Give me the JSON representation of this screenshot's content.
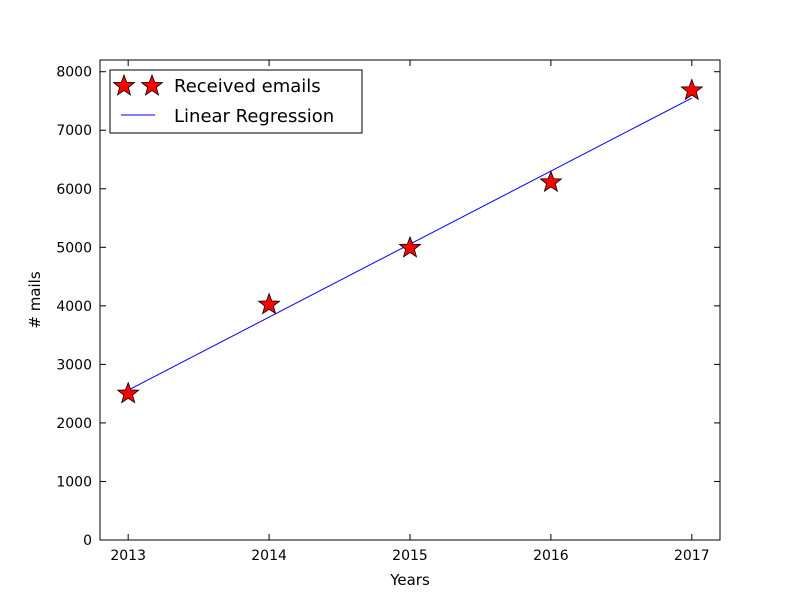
{
  "chart_data": {
    "type": "scatter",
    "title": "",
    "xlabel": "Years",
    "ylabel": "# mails",
    "xlim": [
      2012.8,
      2017.2
    ],
    "ylim": [
      0,
      8200
    ],
    "xticks": [
      2013,
      2014,
      2015,
      2016,
      2017
    ],
    "yticks": [
      0,
      1000,
      2000,
      3000,
      4000,
      5000,
      6000,
      7000,
      8000
    ],
    "xtick_labels": [
      "2013",
      "2014",
      "2015",
      "2016",
      "2017"
    ],
    "ytick_labels": [
      "0",
      "1000",
      "2000",
      "3000",
      "4000",
      "5000",
      "6000",
      "7000",
      "8000"
    ],
    "grid": false,
    "legend_position": "upper-left",
    "series": [
      {
        "name": "Received emails",
        "kind": "scatter",
        "marker": "star",
        "color": "#ff0000",
        "edge_color": "#000000",
        "x": [
          2013,
          2014,
          2015,
          2016,
          2017
        ],
        "y": [
          2500,
          4020,
          4990,
          6110,
          7680
        ]
      },
      {
        "name": "Linear Regression",
        "kind": "line",
        "color": "#0000ff",
        "x": [
          2013,
          2017
        ],
        "y": [
          2560,
          7550
        ]
      }
    ]
  }
}
